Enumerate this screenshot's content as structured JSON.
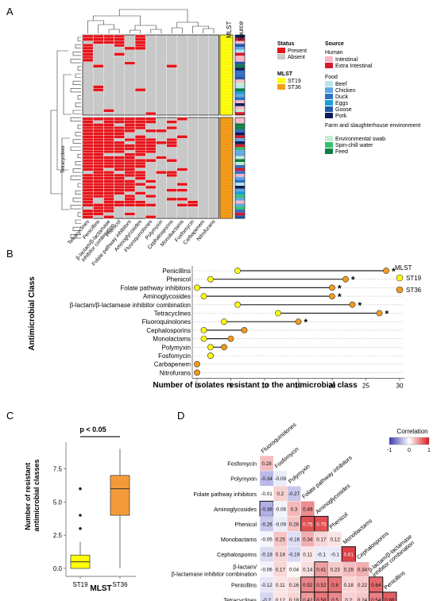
{
  "panel_labels": [
    "A",
    "B",
    "C",
    "D"
  ],
  "colors": {
    "present": "#e5141b",
    "absent": "#c8c8c8",
    "st19": "#ffff0d",
    "st36": "#f39b1b",
    "box_st19": "#ffff00",
    "box_st36": "#f39b3a",
    "src_intestinal": "#f7b6c7",
    "src_extra_intestinal": "#d9182c",
    "src_beef": "#b8e4f0",
    "src_chicken": "#5ea9e3",
    "src_duck": "#2f71c7",
    "src_eggs": "#19a0d8",
    "src_goose": "#2357a8",
    "src_pork": "#0c1d5a",
    "src_env_swab": "#c9ecd3",
    "src_spin_chill": "#35c06d",
    "src_feed": "#0f7f43",
    "corr_neg": "#3b3bb3",
    "corr_pos": "#d6181f"
  },
  "panel_a": {
    "col_header_mlst": "MLST",
    "col_header_source": "Source",
    "row_label": "Tetracyclines",
    "x_labels": [
      "Tetracyclines",
      "Penicillins",
      "β-lactam/β-lactamase inhibitor combination",
      "Phenicol",
      "Folate pathway inhibitors",
      "Aminoglycosides",
      "Fluoroquinolones",
      "Polymyxin",
      "Cephalosporins",
      "Monobactams",
      "Fosfomycin",
      "Carbapenem",
      "Nitrofurans"
    ],
    "legend": {
      "status_title": "Status",
      "status_items": [
        "Present",
        "Absent"
      ],
      "mlst_title": "MLST",
      "mlst_items": [
        "ST19",
        "ST36"
      ],
      "source_title": "Source",
      "human_title": "Human",
      "human_items": [
        "Intestinal",
        "Extra Intestinal"
      ],
      "food_title": "Food",
      "food_items": [
        "Beef",
        "Chicken",
        "Duck",
        "Eggs",
        "Goose",
        "Pork"
      ],
      "farm_title": "Farm and slaughterhouse environment",
      "farm_items": [
        "Environmental swab",
        "Spin-chill water",
        "Feed"
      ]
    }
  },
  "chart_data": [
    {
      "panel": "B",
      "type": "scatter",
      "subtype": "dumbbell",
      "xlabel": "Number of isolates resistant to the antimicrobial class",
      "ylabel": "Antimicrobial Class",
      "xlim": [
        0,
        30
      ],
      "xticks": [
        0,
        5,
        10,
        15,
        20,
        25,
        30
      ],
      "legend_title": "MLST",
      "legend_position": "right",
      "categories": [
        "Penicillins",
        "Phenicol",
        "Folate pathway inhibitors",
        "Aminoglycosides",
        "β-lactam/β-lactamase inhibitor combination",
        "Tetracyclines",
        "Fluoroquinolones",
        "Cephalosporins",
        "Monolactams",
        "Polymyxin",
        "Fosfomycin",
        "Carbapenem",
        "Nitrofurans"
      ],
      "series": [
        {
          "name": "ST19",
          "values": [
            6,
            2,
            0,
            1,
            6,
            12,
            4,
            1,
            1,
            2,
            2,
            null,
            null
          ]
        },
        {
          "name": "ST36",
          "values": [
            28,
            22,
            20,
            20,
            23,
            27,
            15,
            7,
            5,
            4,
            2,
            0,
            0
          ]
        }
      ],
      "significant": [
        true,
        true,
        true,
        true,
        true,
        true,
        true,
        false,
        false,
        false,
        false,
        false,
        false
      ],
      "significance_mark": "*"
    },
    {
      "panel": "C",
      "type": "box",
      "categories": [
        "ST19",
        "ST36"
      ],
      "xlabel": "MLST",
      "ylabel": "Number of resistant antimicrobial classes",
      "ylim": [
        -0.6,
        9.5
      ],
      "yticks": [
        "0.0",
        "2.5",
        "5.0",
        "7.5"
      ],
      "ytick_values": [
        0,
        2.5,
        5,
        7.5
      ],
      "annotation": "p < 0.05",
      "boxes": [
        {
          "name": "ST19",
          "q1": 0,
          "median": 0.5,
          "q3": 1,
          "whisker_low": 0,
          "whisker_high": 2,
          "outliers": [
            3,
            4,
            6
          ]
        },
        {
          "name": "ST36",
          "q1": 4,
          "median": 6,
          "q3": 7,
          "whisker_low": 0,
          "whisker_high": 9,
          "outliers": []
        }
      ]
    },
    {
      "panel": "D",
      "type": "heatmap",
      "legend_title": "Correlation",
      "legend_ticks": [
        "-1",
        "0",
        "1"
      ],
      "col_labels": [
        "Fluoroquinolones",
        "Fosfomycin",
        "Polymyxin",
        "Folate pathway inhibitors",
        "Aminoglycosides",
        "Phenicol",
        "Monobactams",
        "Cephalosporins",
        "β-lactam/β-lactamase inhibitor combination",
        "Penicillins"
      ],
      "row_labels": [
        "Fosfomycin",
        "Polymyxin",
        "Folate pathway inhibitors",
        "Aminoglycosides",
        "Phenicol",
        "Monobactams",
        "Cephalosporins",
        "β-lactam/β-lactamase inhibitor combination",
        "Penicillins",
        "Tetracyclines"
      ],
      "row_labels_display": [
        "Fosfomycin",
        "Polymyxin",
        "Folate pathway inhibitors",
        "Aminoglycosides",
        "Phenicol",
        "Monobactams",
        "Cephalosporins",
        "β-lactam/\nβ-lactamase inhibitor combination",
        "Penicillins",
        "Tetracyclines"
      ],
      "values": [
        [
          0.28
        ],
        [
          -0.34,
          -0.09
        ],
        [
          -0.01,
          0.2,
          -0.27
        ],
        [
          -0.38,
          -0.06,
          0.3,
          0.49
        ],
        [
          -0.26,
          -0.09,
          0.26,
          0.75,
          0.75
        ],
        [
          -0.05,
          0.25,
          -0.16,
          0.34,
          0.17,
          0.12
        ],
        [
          -0.18,
          0.18,
          -0.19,
          0.11,
          -0.1,
          -0.1,
          0.81
        ],
        [
          -0.06,
          0.17,
          0.04,
          0.14,
          0.41,
          0.23,
          0.28,
          0.34
        ],
        [
          -0.12,
          0.11,
          0.16,
          0.52,
          0.52,
          0.6,
          0.18,
          0.22,
          0.64
        ],
        [
          -0.2,
          0.12,
          0.18,
          0.42,
          0.58,
          0.5,
          0.2,
          0.24,
          0.54,
          0.68
        ]
      ],
      "highlighted": [
        [
          3,
          0
        ],
        [
          4,
          3
        ],
        [
          4,
          4
        ],
        [
          6,
          6
        ],
        [
          7,
          4
        ],
        [
          8,
          3
        ],
        [
          8,
          4
        ],
        [
          8,
          5
        ],
        [
          8,
          8
        ],
        [
          9,
          3
        ],
        [
          9,
          4
        ],
        [
          9,
          5
        ],
        [
          9,
          8
        ],
        [
          9,
          9
        ]
      ]
    }
  ]
}
